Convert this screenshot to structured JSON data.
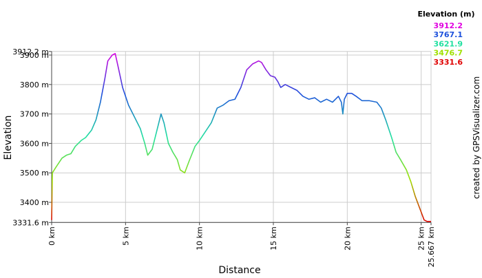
{
  "chart_data": {
    "type": "line",
    "title": "Elevation (m)",
    "xlabel": "Distance",
    "ylabel": "Elevation",
    "credit": "created by GPSVisualizer.com",
    "x": [
      0,
      0.05,
      0.3,
      0.7,
      1,
      1.3,
      1.6,
      2,
      2.3,
      2.7,
      3,
      3.3,
      3.6,
      3.8,
      4.1,
      4.3,
      4.5,
      4.8,
      5.2,
      5.6,
      6,
      6.3,
      6.5,
      6.8,
      7.1,
      7.4,
      7.6,
      7.9,
      8.2,
      8.5,
      8.7,
      9,
      9.3,
      9.7,
      10,
      10.4,
      10.8,
      11.2,
      11.6,
      12,
      12.4,
      12.8,
      13.2,
      13.6,
      14,
      14.2,
      14.5,
      14.8,
      15.1,
      15.3,
      15.5,
      15.8,
      16.2,
      16.6,
      17,
      17.4,
      17.8,
      18.2,
      18.6,
      19,
      19.4,
      19.6,
      19.7,
      19.8,
      20,
      20.3,
      20.6,
      21,
      21.5,
      22,
      22.3,
      22.6,
      23,
      23.3,
      23.6,
      24,
      24.3,
      24.6,
      24.9,
      25.2,
      25.4,
      25.667
    ],
    "values": [
      3340,
      3500,
      3520,
      3550,
      3560,
      3565,
      3590,
      3610,
      3620,
      3645,
      3680,
      3740,
      3820,
      3880,
      3900,
      3905,
      3860,
      3790,
      3730,
      3690,
      3650,
      3600,
      3560,
      3580,
      3640,
      3700,
      3670,
      3600,
      3570,
      3545,
      3510,
      3500,
      3540,
      3590,
      3610,
      3640,
      3670,
      3720,
      3730,
      3745,
      3750,
      3790,
      3850,
      3870,
      3880,
      3875,
      3850,
      3830,
      3825,
      3810,
      3790,
      3800,
      3790,
      3780,
      3760,
      3750,
      3755,
      3740,
      3750,
      3740,
      3760,
      3740,
      3700,
      3750,
      3770,
      3770,
      3760,
      3745,
      3745,
      3740,
      3720,
      3680,
      3620,
      3570,
      3545,
      3510,
      3470,
      3420,
      3380,
      3340,
      3335,
      3335
    ],
    "xlim": [
      0,
      25.667
    ],
    "ylim": [
      3331.6,
      3912.2
    ],
    "xticks": [
      {
        "value": 0,
        "label": "0 km"
      },
      {
        "value": 5,
        "label": "5 km"
      },
      {
        "value": 10,
        "label": "10 km"
      },
      {
        "value": 15,
        "label": "15 km"
      },
      {
        "value": 20,
        "label": "20 km"
      },
      {
        "value": 25,
        "label": "25 km"
      },
      {
        "value": 25.667,
        "label": "25.667 km"
      }
    ],
    "yticks": [
      {
        "value": 3331.6,
        "label": "3331.6 m"
      },
      {
        "value": 3400,
        "label": "3400 m"
      },
      {
        "value": 3500,
        "label": "3500 m"
      },
      {
        "value": 3600,
        "label": "3600 m"
      },
      {
        "value": 3700,
        "label": "3700 m"
      },
      {
        "value": 3800,
        "label": "3800 m"
      },
      {
        "value": 3900,
        "label": "3900 m"
      },
      {
        "value": 3912.2,
        "label": "3912.2 m"
      }
    ],
    "grid": true,
    "color_scale": [
      {
        "value": 3912.2,
        "color": "#e000e0"
      },
      {
        "value": 3767.1,
        "color": "#1c50dc"
      },
      {
        "value": 3621.9,
        "color": "#20e0a0"
      },
      {
        "value": 3476.7,
        "color": "#a0e000"
      },
      {
        "value": 3331.6,
        "color": "#e00000"
      }
    ]
  }
}
